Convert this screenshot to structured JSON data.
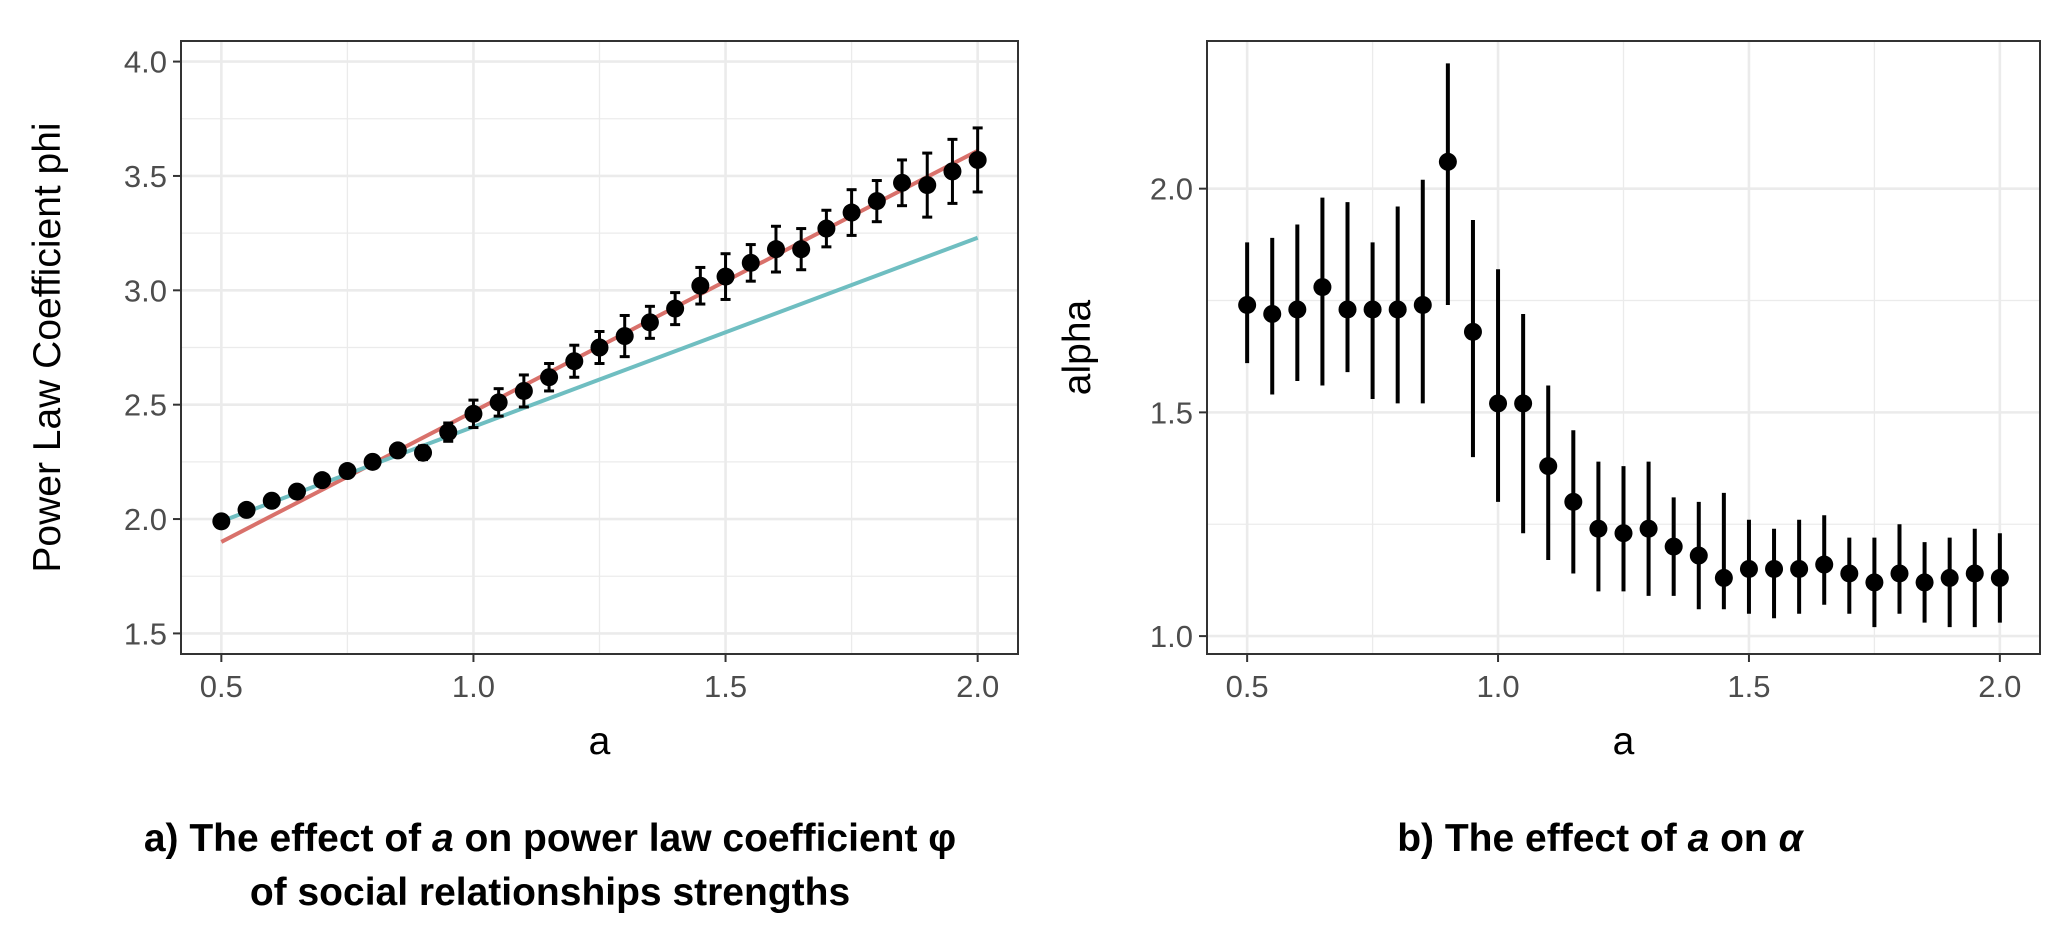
{
  "colors": {
    "red_fit": "#d9716b",
    "cyan_fit": "#6fbec1",
    "points": "#000000",
    "grid": "#ebebeb",
    "axis_text": "#4d4d4d"
  },
  "chart_data": [
    {
      "type": "scatter",
      "panel": "a",
      "xlabel": "a",
      "ylabel": "Power Law Coefficient phi",
      "xlim": [
        0.42,
        2.08
      ],
      "ylim": [
        1.41,
        4.09
      ],
      "xticks": [
        0.5,
        1.0,
        1.5,
        2.0
      ],
      "xtick_labels": [
        "0.5",
        "1.0",
        "1.5",
        "2.0"
      ],
      "yticks": [
        1.5,
        2.0,
        2.5,
        3.0,
        3.5,
        4.0
      ],
      "ytick_labels": [
        "1.5",
        "2.0",
        "2.5",
        "3.0",
        "3.5",
        "4.0"
      ],
      "grid": true,
      "caption_prefix": "a) The effect of ",
      "caption_var": "a",
      "caption_middle": " on power law coefficient φ",
      "caption_line2": "of social relationships strengths",
      "series": [
        {
          "name": "mean phi",
          "kind": "points_errorbars",
          "x": [
            0.5,
            0.55,
            0.6,
            0.65,
            0.7,
            0.75,
            0.8,
            0.85,
            0.9,
            0.95,
            1.0,
            1.05,
            1.1,
            1.15,
            1.2,
            1.25,
            1.3,
            1.35,
            1.4,
            1.45,
            1.5,
            1.55,
            1.6,
            1.65,
            1.7,
            1.75,
            1.8,
            1.85,
            1.9,
            1.95,
            2.0
          ],
          "y": [
            1.99,
            2.04,
            2.08,
            2.12,
            2.17,
            2.21,
            2.25,
            2.3,
            2.29,
            2.38,
            2.46,
            2.51,
            2.56,
            2.62,
            2.69,
            2.75,
            2.8,
            2.86,
            2.92,
            3.02,
            3.06,
            3.12,
            3.18,
            3.18,
            3.27,
            3.34,
            3.39,
            3.47,
            3.46,
            3.52,
            3.57
          ],
          "err": [
            0.02,
            0.02,
            0.02,
            0.02,
            0.02,
            0.02,
            0.02,
            0.02,
            0.03,
            0.04,
            0.06,
            0.06,
            0.07,
            0.06,
            0.07,
            0.07,
            0.09,
            0.07,
            0.07,
            0.08,
            0.1,
            0.08,
            0.1,
            0.09,
            0.08,
            0.1,
            0.09,
            0.1,
            0.14,
            0.14,
            0.14
          ]
        },
        {
          "name": "fit high",
          "kind": "line",
          "color_key": "red_fit",
          "x": [
            0.5,
            2.0
          ],
          "y": [
            1.9,
            3.61
          ]
        },
        {
          "name": "fit low",
          "kind": "line",
          "color_key": "cyan_fit",
          "x": [
            0.5,
            2.0
          ],
          "y": [
            1.99,
            3.23
          ]
        }
      ]
    },
    {
      "type": "scatter",
      "panel": "b",
      "xlabel": "a",
      "ylabel": "alpha",
      "xlim": [
        0.42,
        2.08
      ],
      "ylim": [
        0.96,
        2.33
      ],
      "xticks": [
        0.5,
        1.0,
        1.5,
        2.0
      ],
      "xtick_labels": [
        "0.5",
        "1.0",
        "1.5",
        "2.0"
      ],
      "yticks": [
        1.0,
        1.5,
        2.0
      ],
      "ytick_labels": [
        "1.0",
        "1.5",
        "2.0"
      ],
      "grid": true,
      "caption_prefix": "b) The effect of ",
      "caption_var": "a",
      "caption_middle": " on ",
      "caption_symbol": "α",
      "series": [
        {
          "name": "alpha",
          "kind": "points_range",
          "x": [
            0.5,
            0.55,
            0.6,
            0.65,
            0.7,
            0.75,
            0.8,
            0.85,
            0.9,
            0.95,
            1.0,
            1.05,
            1.1,
            1.15,
            1.2,
            1.25,
            1.3,
            1.35,
            1.4,
            1.45,
            1.5,
            1.55,
            1.6,
            1.65,
            1.7,
            1.75,
            1.8,
            1.85,
            1.9,
            1.95,
            2.0
          ],
          "y": [
            1.74,
            1.72,
            1.73,
            1.78,
            1.73,
            1.73,
            1.73,
            1.74,
            2.06,
            1.68,
            1.52,
            1.52,
            1.38,
            1.3,
            1.24,
            1.23,
            1.24,
            1.2,
            1.18,
            1.13,
            1.15,
            1.15,
            1.15,
            1.16,
            1.14,
            1.12,
            1.14,
            1.12,
            1.13,
            1.14,
            1.13
          ],
          "low": [
            1.61,
            1.54,
            1.57,
            1.56,
            1.59,
            1.53,
            1.52,
            1.52,
            1.74,
            1.4,
            1.3,
            1.23,
            1.17,
            1.14,
            1.1,
            1.1,
            1.09,
            1.09,
            1.06,
            1.06,
            1.05,
            1.04,
            1.05,
            1.07,
            1.05,
            1.02,
            1.05,
            1.03,
            1.02,
            1.02,
            1.03
          ],
          "high": [
            1.88,
            1.89,
            1.92,
            1.98,
            1.97,
            1.88,
            1.96,
            2.02,
            2.28,
            1.93,
            1.82,
            1.72,
            1.56,
            1.46,
            1.39,
            1.38,
            1.39,
            1.31,
            1.3,
            1.32,
            1.26,
            1.24,
            1.26,
            1.27,
            1.22,
            1.22,
            1.25,
            1.21,
            1.22,
            1.24,
            1.23
          ]
        }
      ]
    }
  ]
}
